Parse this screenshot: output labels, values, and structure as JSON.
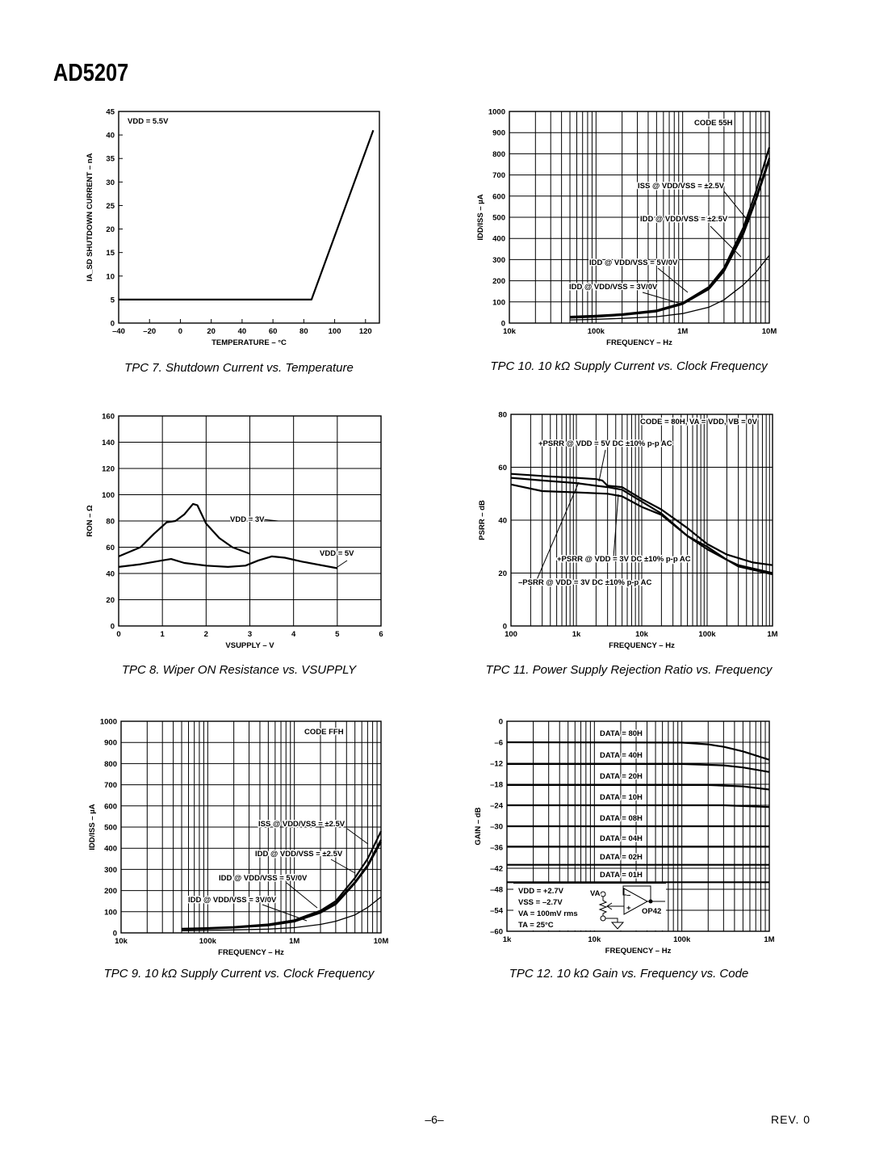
{
  "header": {
    "title": "AD5207"
  },
  "footer": {
    "page": "–6–",
    "revision": "REV. 0"
  },
  "captions": [
    "TPC 7.  Shutdown Current vs. Temperature",
    "TPC 10.  10 kΩ Supply Current vs. Clock Frequency",
    "TPC 8.  Wiper ON Resistance vs. VSUPPLY",
    "TPC 11.  Power Supply Rejection Ratio vs. Frequency",
    "TPC 9.  10 kΩ Supply Current vs. Clock Frequency",
    "TPC 12.  10 kΩ Gain vs. Frequency vs. Code"
  ],
  "chart_data": [
    {
      "id": "TPC 7",
      "type": "line",
      "xlabel": "TEMPERATURE – °C",
      "ylabel": "IA_SD SHUTDOWN CURRENT – nA",
      "xscale": "linear",
      "xlim": [
        -40,
        129
      ],
      "ylim": [
        0,
        45
      ],
      "grid": false,
      "x_ticks": [
        -40,
        -20,
        0,
        20,
        40,
        60,
        80,
        100,
        120
      ],
      "x_tick_labels": [
        "–40",
        "–20",
        "0",
        "20",
        "40",
        "60",
        "80",
        "100",
        "120"
      ],
      "y_ticks": [
        0,
        5,
        10,
        15,
        20,
        25,
        30,
        35,
        40,
        45
      ],
      "y_tick_labels": [
        "0",
        "5",
        "10",
        "15",
        "20",
        "25",
        "30",
        "35",
        "40",
        "45"
      ],
      "series": [
        {
          "x": [
            -40,
            85,
            125
          ],
          "y": [
            5,
            5,
            41
          ],
          "weight": "thick"
        }
      ],
      "annotations": [
        "VDD = 5.5V"
      ]
    },
    {
      "id": "TPC 10",
      "type": "line",
      "xlabel": "FREQUENCY – Hz",
      "ylabel": "IDD/ISS – µA",
      "xscale": "log",
      "xlim": [
        10000,
        10000000
      ],
      "ylim": [
        0,
        1000
      ],
      "grid": true,
      "x_ticks": [
        10000,
        100000,
        1000000,
        10000000
      ],
      "x_tick_labels": [
        "10k",
        "100k",
        "1M",
        "10M"
      ],
      "y_ticks": [
        0,
        100,
        200,
        300,
        400,
        500,
        600,
        700,
        800,
        900,
        1000
      ],
      "y_tick_labels": [
        "0",
        "100",
        "200",
        "300",
        "400",
        "500",
        "600",
        "700",
        "800",
        "900",
        "1000"
      ],
      "series": [
        {
          "x": [
            50000,
            100000,
            200000,
            500000,
            1000000,
            2000000,
            3000000,
            5000000,
            7000000,
            10000000
          ],
          "y": [
            30,
            35,
            42,
            60,
            95,
            170,
            260,
            450,
            620,
            830
          ],
          "weight": "thick"
        },
        {
          "x": [
            50000,
            100000,
            200000,
            500000,
            1000000,
            2000000,
            3000000,
            5000000,
            7000000,
            10000000
          ],
          "y": [
            28,
            33,
            40,
            58,
            92,
            165,
            250,
            430,
            590,
            780
          ],
          "weight": "thick"
        },
        {
          "x": [
            50000,
            100000,
            200000,
            500000,
            1000000,
            2000000,
            3000000,
            5000000,
            7000000,
            10000000
          ],
          "y": [
            25,
            30,
            38,
            55,
            90,
            160,
            245,
            420,
            580,
            770
          ],
          "weight": "thick"
        },
        {
          "x": [
            50000,
            100000,
            200000,
            500000,
            1000000,
            2000000,
            3000000,
            5000000,
            7000000,
            10000000
          ],
          "y": [
            15,
            18,
            22,
            30,
            45,
            75,
            110,
            180,
            240,
            320
          ],
          "weight": "thin"
        }
      ],
      "annotations": [
        "CODE 55H",
        "ISS @ VDD/VSS = ±2.5V",
        "IDD @ VDD/VSS = ±2.5V",
        "IDD @ VDD/VSS = 5V/0V",
        "IDD @ VDD/VSS = 3V/0V"
      ]
    },
    {
      "id": "TPC 8",
      "type": "line",
      "xlabel": "VSUPPLY – V",
      "ylabel": "RON – Ω",
      "xscale": "linear",
      "xlim": [
        0,
        6
      ],
      "ylim": [
        0,
        160
      ],
      "grid": true,
      "x_ticks": [
        0,
        1,
        2,
        3,
        4,
        5,
        6
      ],
      "x_tick_labels": [
        "0",
        "1",
        "2",
        "3",
        "4",
        "5",
        "6"
      ],
      "y_ticks": [
        0,
        20,
        40,
        60,
        80,
        100,
        120,
        140,
        160
      ],
      "y_tick_labels": [
        "0",
        "20",
        "40",
        "60",
        "80",
        "100",
        "120",
        "140",
        "160"
      ],
      "series": [
        {
          "name": "VDD = 3V",
          "x": [
            0,
            0.5,
            0.8,
            1.1,
            1.3,
            1.5,
            1.7,
            1.8,
            2.0,
            2.3,
            2.6,
            3.0
          ],
          "y": [
            53,
            60,
            70,
            79,
            80,
            85,
            93,
            92,
            78,
            67,
            60,
            55
          ],
          "weight": "thick"
        },
        {
          "name": "VDD = 5V",
          "x": [
            0,
            0.5,
            1.0,
            1.2,
            1.5,
            2.0,
            2.5,
            2.9,
            3.2,
            3.5,
            3.8,
            4.2,
            5.0
          ],
          "y": [
            45,
            47,
            50,
            51,
            48,
            46,
            45,
            46,
            50,
            53,
            52,
            49,
            44
          ],
          "weight": "thick"
        }
      ],
      "annotations": [
        "VDD = 3V",
        "VDD = 5V"
      ]
    },
    {
      "id": "TPC 11",
      "type": "line",
      "xlabel": "FREQUENCY – Hz",
      "ylabel": "PSRR – dB",
      "xscale": "log",
      "xlim": [
        100,
        1000000
      ],
      "ylim": [
        0,
        80
      ],
      "grid": true,
      "x_ticks": [
        100,
        1000,
        10000,
        100000,
        1000000
      ],
      "x_tick_labels": [
        "100",
        "1k",
        "10k",
        "100k",
        "1M"
      ],
      "y_ticks": [
        0,
        20,
        40,
        60,
        80
      ],
      "y_tick_labels": [
        "0",
        "20",
        "40",
        "60",
        "80"
      ],
      "series": [
        {
          "name": "+PSRR @ VDD = 5V DC ±10% p-p AC",
          "x": [
            100,
            200,
            400,
            1000,
            2000,
            2500,
            3000,
            5000,
            10000,
            20000,
            50000,
            100000,
            200000,
            500000,
            1000000
          ],
          "y": [
            57.5,
            57,
            56.5,
            56,
            55.5,
            55,
            53,
            52.5,
            48,
            44,
            37,
            31,
            27,
            24,
            23
          ],
          "weight": "thick"
        },
        {
          "name": "+PSRR @ VDD = 3V DC ±10% p-p AC",
          "x": [
            100,
            300,
            1000,
            2000,
            3000,
            5000,
            10000,
            20000,
            50000,
            100000,
            200000,
            300000,
            1000000
          ],
          "y": [
            56,
            55,
            54,
            53,
            52.5,
            51.5,
            47,
            42.5,
            34,
            29,
            25,
            23,
            20
          ],
          "weight": "thick"
        },
        {
          "name": "–PSRR @ VDD = 3V DC ±10% p-p AC",
          "x": [
            100,
            300,
            1000,
            3000,
            5000,
            10000,
            20000,
            50000,
            100000,
            200000,
            300000,
            1000000
          ],
          "y": [
            53.5,
            51,
            50.5,
            50,
            49,
            45,
            42,
            34,
            30,
            25,
            22.5,
            19.5
          ],
          "weight": "thick"
        }
      ],
      "annotations": [
        "CODE = 80H, VA = VDD, VB = 0V",
        "+PSRR @ VDD = 5V DC ±10% p-p AC",
        "+PSRR @ VDD = 3V DC ±10% p-p AC",
        "–PSRR @ VDD = 3V DC ±10% p-p AC"
      ]
    },
    {
      "id": "TPC 9",
      "type": "line",
      "xlabel": "FREQUENCY – Hz",
      "ylabel": "IDD/ISS – µA",
      "xscale": "log",
      "xlim": [
        10000,
        10000000
      ],
      "ylim": [
        0,
        1000
      ],
      "grid": true,
      "x_ticks": [
        10000,
        100000,
        1000000,
        10000000
      ],
      "x_tick_labels": [
        "10k",
        "100k",
        "1M",
        "10M"
      ],
      "y_ticks": [
        0,
        100,
        200,
        300,
        400,
        500,
        600,
        700,
        800,
        900,
        1000
      ],
      "y_tick_labels": [
        "0",
        "100",
        "200",
        "300",
        "400",
        "500",
        "600",
        "700",
        "800",
        "900",
        "1000"
      ],
      "series": [
        {
          "x": [
            50000,
            100000,
            200000,
            500000,
            1000000,
            2000000,
            3000000,
            5000000,
            7000000,
            10000000
          ],
          "y": [
            20,
            23,
            28,
            40,
            60,
            105,
            150,
            260,
            350,
            480
          ],
          "weight": "thick"
        },
        {
          "x": [
            50000,
            100000,
            200000,
            500000,
            1000000,
            2000000,
            3000000,
            5000000,
            7000000,
            10000000
          ],
          "y": [
            18,
            21,
            26,
            37,
            56,
            98,
            140,
            240,
            320,
            440
          ],
          "weight": "thick"
        },
        {
          "x": [
            50000,
            100000,
            200000,
            500000,
            1000000,
            2000000,
            3000000,
            5000000,
            7000000,
            10000000
          ],
          "y": [
            17,
            20,
            25,
            35,
            54,
            95,
            135,
            235,
            315,
            430
          ],
          "weight": "thick"
        },
        {
          "x": [
            50000,
            100000,
            200000,
            500000,
            1000000,
            2000000,
            3000000,
            5000000,
            7000000,
            10000000
          ],
          "y": [
            10,
            12,
            14,
            18,
            25,
            40,
            55,
            85,
            120,
            170
          ],
          "weight": "thin"
        }
      ],
      "annotations": [
        "CODE FFH",
        "ISS @ VDD/VSS = ±2.5V",
        "IDD @ VDD/VSS = ±2.5V",
        "IDD @ VDD/VSS = 5V/0V",
        "IDD @ VDD/VSS = 3V/0V"
      ]
    },
    {
      "id": "TPC 12",
      "type": "line",
      "xlabel": "FREQUENCY – Hz",
      "ylabel": "GAIN – dB",
      "xscale": "log",
      "xlim": [
        1000,
        1000000
      ],
      "ylim": [
        -60,
        0
      ],
      "grid": true,
      "x_ticks": [
        1000,
        10000,
        100000,
        1000000
      ],
      "x_tick_labels": [
        "1k",
        "10k",
        "100k",
        "1M"
      ],
      "y_ticks": [
        0,
        -6,
        -12,
        -18,
        -24,
        -30,
        -36,
        -42,
        -48,
        -54,
        -60
      ],
      "y_tick_labels": [
        "0",
        "–6",
        "–12",
        "–18",
        "–24",
        "–30",
        "–36",
        "–42",
        "–48",
        "–54",
        "–60"
      ],
      "series": [
        {
          "name": "DATA = 80H",
          "x": [
            1000,
            100000,
            200000,
            300000,
            500000,
            1000000
          ],
          "y": [
            -6,
            -6.1,
            -6.6,
            -7.3,
            -8.6,
            -11
          ],
          "weight": "thick"
        },
        {
          "name": "DATA = 40H",
          "x": [
            1000,
            100000,
            300000,
            500000,
            1000000
          ],
          "y": [
            -12.2,
            -12.2,
            -12.6,
            -13.2,
            -14.5
          ],
          "weight": "thick"
        },
        {
          "name": "DATA = 20H",
          "x": [
            1000,
            200000,
            500000,
            1000000
          ],
          "y": [
            -18.2,
            -18.2,
            -18.6,
            -19.5
          ],
          "weight": "thick"
        },
        {
          "name": "DATA = 10H",
          "x": [
            1000,
            300000,
            1000000
          ],
          "y": [
            -24,
            -24,
            -24.5
          ],
          "weight": "thick"
        },
        {
          "name": "DATA = 08H",
          "x": [
            1000,
            1000000
          ],
          "y": [
            -30,
            -30
          ],
          "weight": "thick"
        },
        {
          "name": "DATA = 04H",
          "x": [
            1000,
            1000000
          ],
          "y": [
            -35.8,
            -35.8
          ],
          "weight": "thick"
        },
        {
          "name": "DATA = 02H",
          "x": [
            1000,
            1000000
          ],
          "y": [
            -41,
            -41
          ],
          "weight": "thick"
        },
        {
          "name": "DATA = 01H",
          "x": [
            1000,
            1000000
          ],
          "y": [
            -46,
            -46
          ],
          "weight": "thick"
        }
      ],
      "annotations": [
        "DATA = 80H",
        "DATA = 40H",
        "DATA = 20H",
        "DATA = 10H",
        "DATA = 08H",
        "DATA = 04H",
        "DATA = 02H",
        "DATA = 01H",
        "VDD = +2.7V",
        "VSS = –2.7V",
        "VA = 100mV rms",
        "TA = 25°C",
        "VA",
        "OP42"
      ]
    }
  ]
}
